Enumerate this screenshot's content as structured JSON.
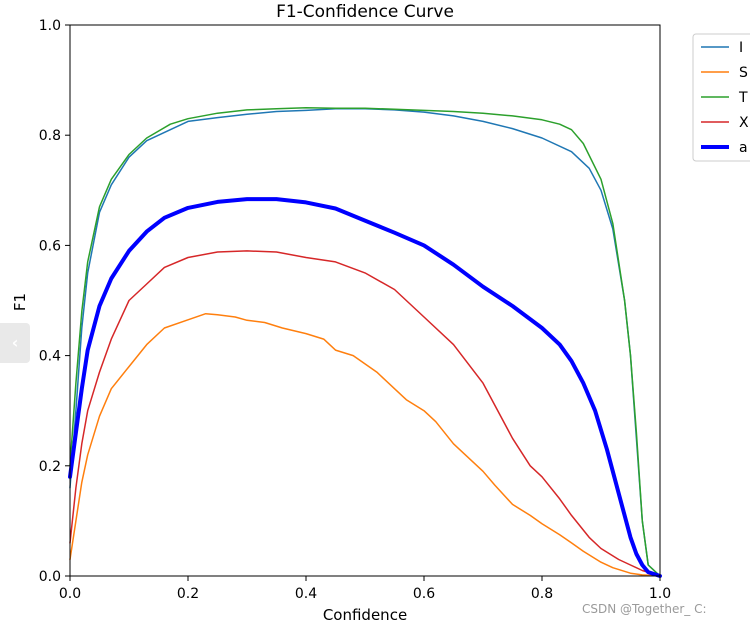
{
  "chart_data": {
    "type": "line",
    "title": "F1-Confidence Curve",
    "xlabel": "Confidence",
    "ylabel": "F1",
    "xlim": [
      0.0,
      1.0
    ],
    "ylim": [
      0.0,
      1.0
    ],
    "xticks": [
      "0.0",
      "0.2",
      "0.4",
      "0.6",
      "0.8",
      "1.0"
    ],
    "yticks": [
      "0.0",
      "0.2",
      "0.4",
      "0.6",
      "0.8",
      "1.0"
    ],
    "grid": false,
    "legend_position": "outside upper right (clipped)",
    "legend_labels": [
      "I",
      "S",
      "T",
      "X",
      "a"
    ],
    "series": [
      {
        "name": "I",
        "color": "#1f77b4",
        "width": "thin",
        "points": [
          [
            0,
            0.16
          ],
          [
            0.01,
            0.3
          ],
          [
            0.02,
            0.45
          ],
          [
            0.03,
            0.55
          ],
          [
            0.05,
            0.66
          ],
          [
            0.07,
            0.71
          ],
          [
            0.1,
            0.76
          ],
          [
            0.13,
            0.79
          ],
          [
            0.17,
            0.81
          ],
          [
            0.2,
            0.825
          ],
          [
            0.25,
            0.832
          ],
          [
            0.3,
            0.838
          ],
          [
            0.35,
            0.843
          ],
          [
            0.4,
            0.845
          ],
          [
            0.45,
            0.848
          ],
          [
            0.5,
            0.848
          ],
          [
            0.55,
            0.846
          ],
          [
            0.6,
            0.842
          ],
          [
            0.65,
            0.835
          ],
          [
            0.7,
            0.825
          ],
          [
            0.75,
            0.812
          ],
          [
            0.8,
            0.795
          ],
          [
            0.85,
            0.77
          ],
          [
            0.88,
            0.74
          ],
          [
            0.9,
            0.7
          ],
          [
            0.92,
            0.63
          ],
          [
            0.94,
            0.5
          ],
          [
            0.95,
            0.4
          ],
          [
            0.96,
            0.25
          ],
          [
            0.97,
            0.1
          ],
          [
            0.98,
            0.02
          ],
          [
            1.0,
            0.0
          ]
        ]
      },
      {
        "name": "S",
        "color": "#ff7f0e",
        "width": "thin",
        "points": [
          [
            0,
            0.03
          ],
          [
            0.01,
            0.1
          ],
          [
            0.02,
            0.17
          ],
          [
            0.03,
            0.22
          ],
          [
            0.05,
            0.29
          ],
          [
            0.07,
            0.34
          ],
          [
            0.1,
            0.38
          ],
          [
            0.13,
            0.42
          ],
          [
            0.16,
            0.45
          ],
          [
            0.2,
            0.465
          ],
          [
            0.23,
            0.476
          ],
          [
            0.25,
            0.474
          ],
          [
            0.28,
            0.47
          ],
          [
            0.3,
            0.464
          ],
          [
            0.33,
            0.46
          ],
          [
            0.36,
            0.45
          ],
          [
            0.4,
            0.44
          ],
          [
            0.43,
            0.43
          ],
          [
            0.45,
            0.41
          ],
          [
            0.48,
            0.4
          ],
          [
            0.5,
            0.385
          ],
          [
            0.52,
            0.37
          ],
          [
            0.55,
            0.34
          ],
          [
            0.57,
            0.32
          ],
          [
            0.6,
            0.3
          ],
          [
            0.62,
            0.28
          ],
          [
            0.65,
            0.24
          ],
          [
            0.68,
            0.21
          ],
          [
            0.7,
            0.19
          ],
          [
            0.72,
            0.165
          ],
          [
            0.75,
            0.13
          ],
          [
            0.78,
            0.11
          ],
          [
            0.8,
            0.095
          ],
          [
            0.83,
            0.075
          ],
          [
            0.85,
            0.06
          ],
          [
            0.87,
            0.045
          ],
          [
            0.9,
            0.025
          ],
          [
            0.92,
            0.015
          ],
          [
            0.95,
            0.005
          ],
          [
            0.97,
            0.002
          ],
          [
            1.0,
            0.0
          ]
        ]
      },
      {
        "name": "T",
        "color": "#2ca02c",
        "width": "thin",
        "points": [
          [
            0,
            0.2
          ],
          [
            0.01,
            0.35
          ],
          [
            0.02,
            0.48
          ],
          [
            0.03,
            0.57
          ],
          [
            0.05,
            0.67
          ],
          [
            0.07,
            0.72
          ],
          [
            0.1,
            0.765
          ],
          [
            0.13,
            0.795
          ],
          [
            0.17,
            0.82
          ],
          [
            0.2,
            0.83
          ],
          [
            0.25,
            0.84
          ],
          [
            0.3,
            0.846
          ],
          [
            0.35,
            0.848
          ],
          [
            0.4,
            0.85
          ],
          [
            0.45,
            0.849
          ],
          [
            0.5,
            0.849
          ],
          [
            0.55,
            0.847
          ],
          [
            0.6,
            0.845
          ],
          [
            0.65,
            0.843
          ],
          [
            0.7,
            0.84
          ],
          [
            0.75,
            0.835
          ],
          [
            0.8,
            0.828
          ],
          [
            0.83,
            0.82
          ],
          [
            0.85,
            0.81
          ],
          [
            0.87,
            0.785
          ],
          [
            0.9,
            0.72
          ],
          [
            0.92,
            0.64
          ],
          [
            0.94,
            0.5
          ],
          [
            0.95,
            0.4
          ],
          [
            0.96,
            0.26
          ],
          [
            0.97,
            0.1
          ],
          [
            0.98,
            0.02
          ],
          [
            1.0,
            0.0
          ]
        ]
      },
      {
        "name": "X",
        "color": "#d62728",
        "width": "thin",
        "points": [
          [
            0,
            0.06
          ],
          [
            0.01,
            0.16
          ],
          [
            0.02,
            0.24
          ],
          [
            0.03,
            0.3
          ],
          [
            0.05,
            0.37
          ],
          [
            0.07,
            0.43
          ],
          [
            0.1,
            0.5
          ],
          [
            0.13,
            0.53
          ],
          [
            0.16,
            0.56
          ],
          [
            0.2,
            0.578
          ],
          [
            0.25,
            0.588
          ],
          [
            0.3,
            0.59
          ],
          [
            0.35,
            0.588
          ],
          [
            0.4,
            0.578
          ],
          [
            0.45,
            0.57
          ],
          [
            0.5,
            0.55
          ],
          [
            0.55,
            0.52
          ],
          [
            0.6,
            0.47
          ],
          [
            0.65,
            0.42
          ],
          [
            0.7,
            0.35
          ],
          [
            0.75,
            0.25
          ],
          [
            0.78,
            0.2
          ],
          [
            0.8,
            0.18
          ],
          [
            0.83,
            0.14
          ],
          [
            0.85,
            0.11
          ],
          [
            0.88,
            0.07
          ],
          [
            0.9,
            0.05
          ],
          [
            0.93,
            0.03
          ],
          [
            0.95,
            0.02
          ],
          [
            0.97,
            0.01
          ],
          [
            1.0,
            0.0
          ]
        ]
      },
      {
        "name": "a",
        "color": "#0000ff",
        "width": "thick",
        "points": [
          [
            0,
            0.18
          ],
          [
            0.01,
            0.26
          ],
          [
            0.02,
            0.34
          ],
          [
            0.03,
            0.41
          ],
          [
            0.05,
            0.49
          ],
          [
            0.07,
            0.54
          ],
          [
            0.1,
            0.59
          ],
          [
            0.13,
            0.625
          ],
          [
            0.16,
            0.65
          ],
          [
            0.2,
            0.668
          ],
          [
            0.25,
            0.679
          ],
          [
            0.3,
            0.684
          ],
          [
            0.35,
            0.684
          ],
          [
            0.4,
            0.678
          ],
          [
            0.45,
            0.667
          ],
          [
            0.5,
            0.645
          ],
          [
            0.55,
            0.623
          ],
          [
            0.6,
            0.6
          ],
          [
            0.65,
            0.565
          ],
          [
            0.7,
            0.525
          ],
          [
            0.75,
            0.49
          ],
          [
            0.8,
            0.45
          ],
          [
            0.83,
            0.42
          ],
          [
            0.85,
            0.39
          ],
          [
            0.87,
            0.35
          ],
          [
            0.89,
            0.3
          ],
          [
            0.91,
            0.23
          ],
          [
            0.93,
            0.15
          ],
          [
            0.94,
            0.11
          ],
          [
            0.95,
            0.07
          ],
          [
            0.96,
            0.04
          ],
          [
            0.97,
            0.02
          ],
          [
            0.98,
            0.007
          ],
          [
            1.0,
            0.0
          ]
        ]
      }
    ]
  },
  "ui": {
    "side_tab_glyph": "‹",
    "watermark": "CSDN @Together_ C:"
  }
}
